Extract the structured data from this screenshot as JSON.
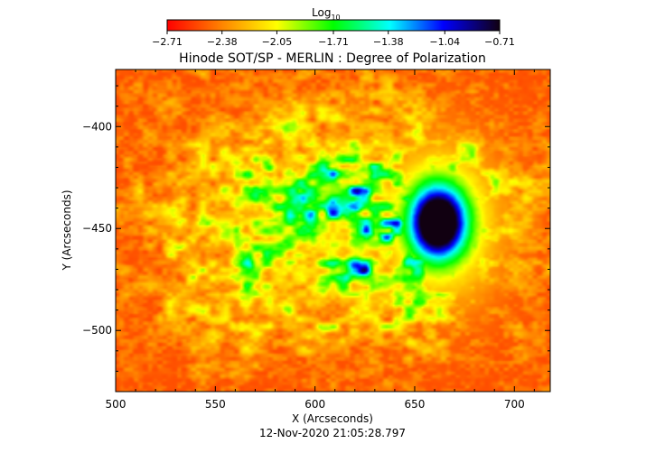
{
  "chart_data": {
    "type": "heatmap",
    "title": "Hinode SOT/SP - MERLIN : Degree of Polarization",
    "xlabel": "X (Arcseconds)",
    "ylabel": "Y (Arcseconds)",
    "timestamp": "12-Nov-2020 21:05:28.797",
    "xlim": [
      500,
      718
    ],
    "ylim": [
      -530,
      -372
    ],
    "x_ticks": [
      500,
      550,
      600,
      650,
      700
    ],
    "x_tick_labels": [
      "500",
      "550",
      "600",
      "650",
      "700"
    ],
    "y_ticks": [
      -400,
      -450,
      -500
    ],
    "y_tick_labels": [
      "−400",
      "−450",
      "−500"
    ],
    "colorbar": {
      "title_base": "Log",
      "title_sub": "10",
      "scale": "log10",
      "range": [
        -2.71,
        -0.71
      ],
      "ticks": [
        -2.71,
        -2.38,
        -2.05,
        -1.71,
        -1.38,
        -1.04,
        -0.71
      ],
      "tick_labels": [
        "−2.71",
        "−2.38",
        "−2.05",
        "−1.71",
        "−1.38",
        "−1.04",
        "−0.71"
      ],
      "colormap": "rainbow",
      "stops": [
        "#ff0000",
        "#ff8800",
        "#ffff00",
        "#00ff00",
        "#00ffff",
        "#0000ff",
        "#110011"
      ]
    },
    "features": [
      {
        "name": "sunspot",
        "x": 662,
        "y": -447,
        "peak_value": -0.8
      },
      {
        "name": "network",
        "x": 612,
        "y": -448,
        "value": -1.7
      }
    ],
    "background_value": -2.5
  }
}
